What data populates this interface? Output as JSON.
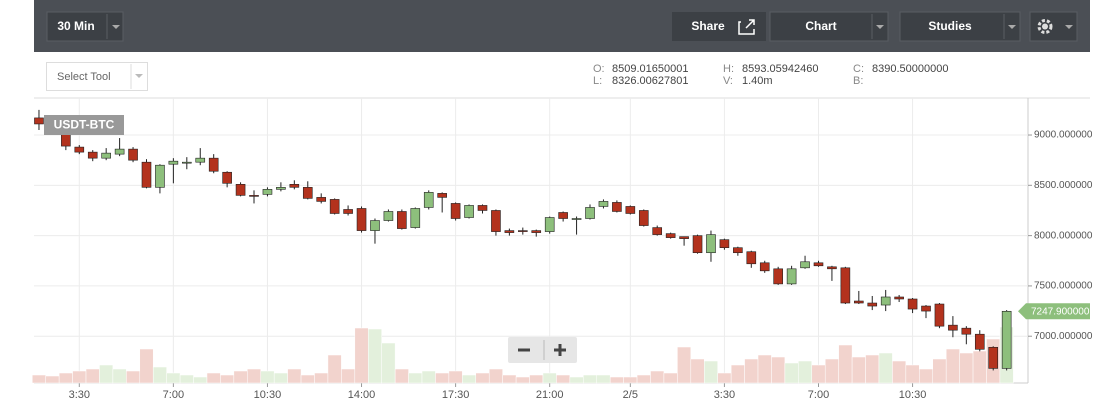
{
  "toolbar": {
    "interval": "30 Min",
    "share": "Share",
    "chart": "Chart",
    "studies": "Studies"
  },
  "select_tool": "Select Tool",
  "ohlc_info": [
    {
      "label": "O:",
      "value": "8509.01650001"
    },
    {
      "label": "L:",
      "value": "8326.00627801"
    },
    {
      "label": "H:",
      "value": "8593.05942460"
    },
    {
      "label": "V:",
      "value": "1.40m"
    },
    {
      "label": "C:",
      "value": "8390.50000000"
    },
    {
      "label": "B:"
    }
  ],
  "chart_data": {
    "type": "candlestick",
    "symbol": "USDT-BTC",
    "categories": [
      null,
      null,
      null,
      "3:30",
      null,
      null,
      null,
      null,
      null,
      null,
      "7:00",
      null,
      null,
      null,
      null,
      null,
      null,
      "10:30",
      null,
      null,
      null,
      null,
      null,
      null,
      "14:00",
      null,
      null,
      null,
      null,
      null,
      null,
      "17:30",
      null,
      null,
      null,
      null,
      null,
      null,
      "21:00",
      null,
      null,
      null,
      null,
      null,
      "2/5",
      null,
      null,
      null,
      null,
      null,
      null,
      "3:30",
      null,
      null,
      null,
      null,
      null,
      null,
      "7:00",
      null,
      null,
      null,
      null,
      null,
      null,
      "10:30",
      null,
      null,
      null,
      null,
      null,
      null,
      null
    ],
    "open": [
      9170,
      9100,
      9010,
      8880,
      8830,
      8770,
      8810,
      8860,
      8730,
      8480,
      8710,
      8720,
      8730,
      8770,
      8630,
      8510,
      8400,
      8410,
      8460,
      8510,
      8480,
      8380,
      8360,
      8260,
      8270,
      8050,
      8150,
      8240,
      8080,
      8280,
      8420,
      8320,
      8180,
      8300,
      8250,
      8050,
      8050,
      8050,
      8040,
      8230,
      8160,
      8170,
      8290,
      8330,
      8290,
      8250,
      8080,
      8020,
      7990,
      8000,
      7830,
      7960,
      7880,
      7840,
      7730,
      7670,
      7520,
      7680,
      7730,
      7690,
      7680,
      7350,
      7330,
      7310,
      7390,
      7370,
      7300,
      7320,
      7110,
      7080,
      7020,
      6890,
      6680
    ],
    "high": [
      9250,
      9150,
      9040,
      8900,
      8850,
      8870,
      8970,
      8880,
      8760,
      8710,
      8770,
      8780,
      8870,
      8810,
      8640,
      8530,
      8450,
      8480,
      8530,
      8550,
      8540,
      8420,
      8370,
      8300,
      8290,
      8170,
      8260,
      8260,
      8280,
      8450,
      8430,
      8330,
      8310,
      8310,
      8260,
      8070,
      8080,
      8060,
      8190,
      8240,
      8190,
      8310,
      8360,
      8350,
      8300,
      8260,
      8100,
      8030,
      7990,
      8010,
      8050,
      7970,
      7890,
      7850,
      7750,
      7690,
      7700,
      7800,
      7750,
      7700,
      7690,
      7450,
      7400,
      7460,
      7410,
      7380,
      7310,
      7330,
      7200,
      7100,
      7060,
      6900,
      7260
    ],
    "low": [
      9050,
      9060,
      8850,
      8810,
      8740,
      8750,
      8790,
      8730,
      8470,
      8420,
      8520,
      8660,
      8700,
      8620,
      8480,
      8390,
      8320,
      8390,
      8440,
      8460,
      8360,
      8320,
      8210,
      8200,
      8030,
      7920,
      8140,
      8060,
      8070,
      8260,
      8230,
      8150,
      8170,
      8220,
      8000,
      8000,
      8010,
      7990,
      8020,
      8140,
      8010,
      8160,
      8270,
      8230,
      8210,
      8090,
      8000,
      7970,
      7900,
      7820,
      7740,
      7860,
      7800,
      7680,
      7630,
      7510,
      7510,
      7670,
      7690,
      7550,
      7320,
      7320,
      7260,
      7250,
      7340,
      7230,
      7180,
      7080,
      6990,
      6920,
      6850,
      6660,
      6660
    ],
    "close": [
      9110,
      9090,
      8890,
      8830,
      8770,
      8820,
      8860,
      8750,
      8480,
      8700,
      8740,
      8730,
      8770,
      8640,
      8520,
      8400,
      8390,
      8460,
      8480,
      8480,
      8370,
      8340,
      8220,
      8220,
      8050,
      8150,
      8240,
      8070,
      8270,
      8430,
      8380,
      8170,
      8300,
      8250,
      8040,
      8030,
      8040,
      8030,
      8180,
      8170,
      8170,
      8280,
      8340,
      8240,
      8220,
      8100,
      8010,
      7980,
      7970,
      7830,
      8010,
      7880,
      7830,
      7720,
      7650,
      7520,
      7670,
      7740,
      7700,
      7670,
      7330,
      7330,
      7300,
      7390,
      7370,
      7270,
      7250,
      7100,
      7060,
      7020,
      6870,
      6680,
      7247.9
    ],
    "volume": [
      8,
      7,
      10,
      12,
      14,
      18,
      14,
      12,
      34,
      16,
      10,
      8,
      6,
      10,
      8,
      12,
      14,
      12,
      10,
      14,
      8,
      10,
      28,
      14,
      55,
      54,
      40,
      14,
      10,
      12,
      10,
      12,
      8,
      10,
      14,
      8,
      6,
      8,
      10,
      8,
      6,
      8,
      8,
      6,
      6,
      8,
      12,
      10,
      36,
      24,
      22,
      10,
      18,
      24,
      28,
      26,
      20,
      22,
      18,
      24,
      38,
      26,
      28,
      30,
      22,
      18,
      14,
      24,
      34,
      30,
      32,
      44,
      56
    ],
    "volume_lim": [
      0,
      60
    ],
    "ylim": [
      6535,
      9368
    ],
    "yticks": [
      {
        "value": 9000,
        "label": "9000.000000"
      },
      {
        "value": 8500,
        "label": "8500.000000"
      },
      {
        "value": 8000,
        "label": "8000.000000"
      },
      {
        "value": 7500,
        "label": "7500.000000"
      },
      {
        "value": 7000,
        "label": "7000.000000"
      }
    ],
    "last_price": {
      "value": 7247.9,
      "label": "7247.900000"
    },
    "up_color": "#8dbf7c",
    "down_color": "#b3321d",
    "volume_up_color": "#e3f0dc",
    "volume_down_color": "#f2d3cd",
    "grid": true
  }
}
